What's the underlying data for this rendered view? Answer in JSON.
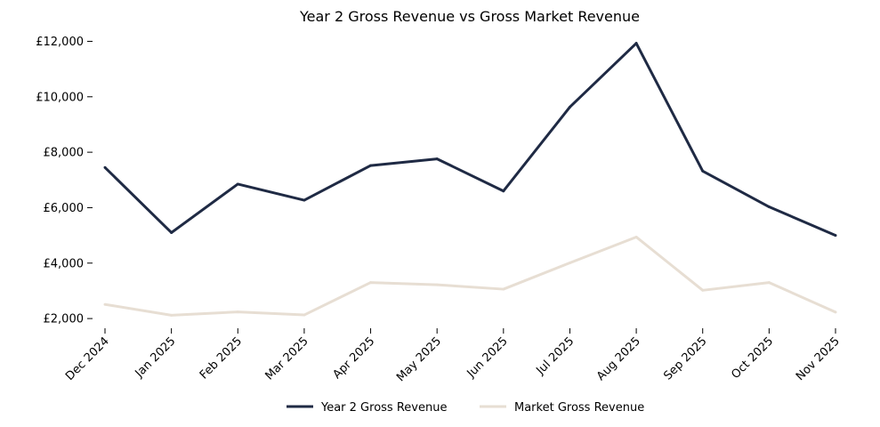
{
  "chart_data": {
    "type": "line",
    "title": "Year 2 Gross Revenue vs Gross Market Revenue",
    "xlabel": "",
    "ylabel": "",
    "categories": [
      "Dec 2024",
      "Jan 2025",
      "Feb 2025",
      "Mar 2025",
      "Apr 2025",
      "May 2025",
      "Jun 2025",
      "Jul 2025",
      "Aug 2025",
      "Sep 2025",
      "Oct 2025",
      "Nov 2025"
    ],
    "ylim": [
      1650,
      12400
    ],
    "yticks": [
      2000,
      4000,
      6000,
      8000,
      10000,
      12000
    ],
    "ytick_labels": [
      "£2,000",
      "£4,000",
      "£6,000",
      "£8,000",
      "£10,000",
      "£12,000"
    ],
    "grid": false,
    "legend_position": "bottom-center",
    "series": [
      {
        "name": "Year 2 Gross Revenue",
        "color": "#1f2a44",
        "values": [
          7450,
          5100,
          6850,
          6270,
          7520,
          7760,
          6600,
          9630,
          11930,
          7320,
          6030,
          5000
        ]
      },
      {
        "name": "Market Gross Revenue",
        "color": "#e7ded3",
        "values": [
          2510,
          2120,
          2240,
          2130,
          3300,
          3220,
          3060,
          4010,
          4940,
          3020,
          3300,
          2230
        ]
      }
    ]
  }
}
